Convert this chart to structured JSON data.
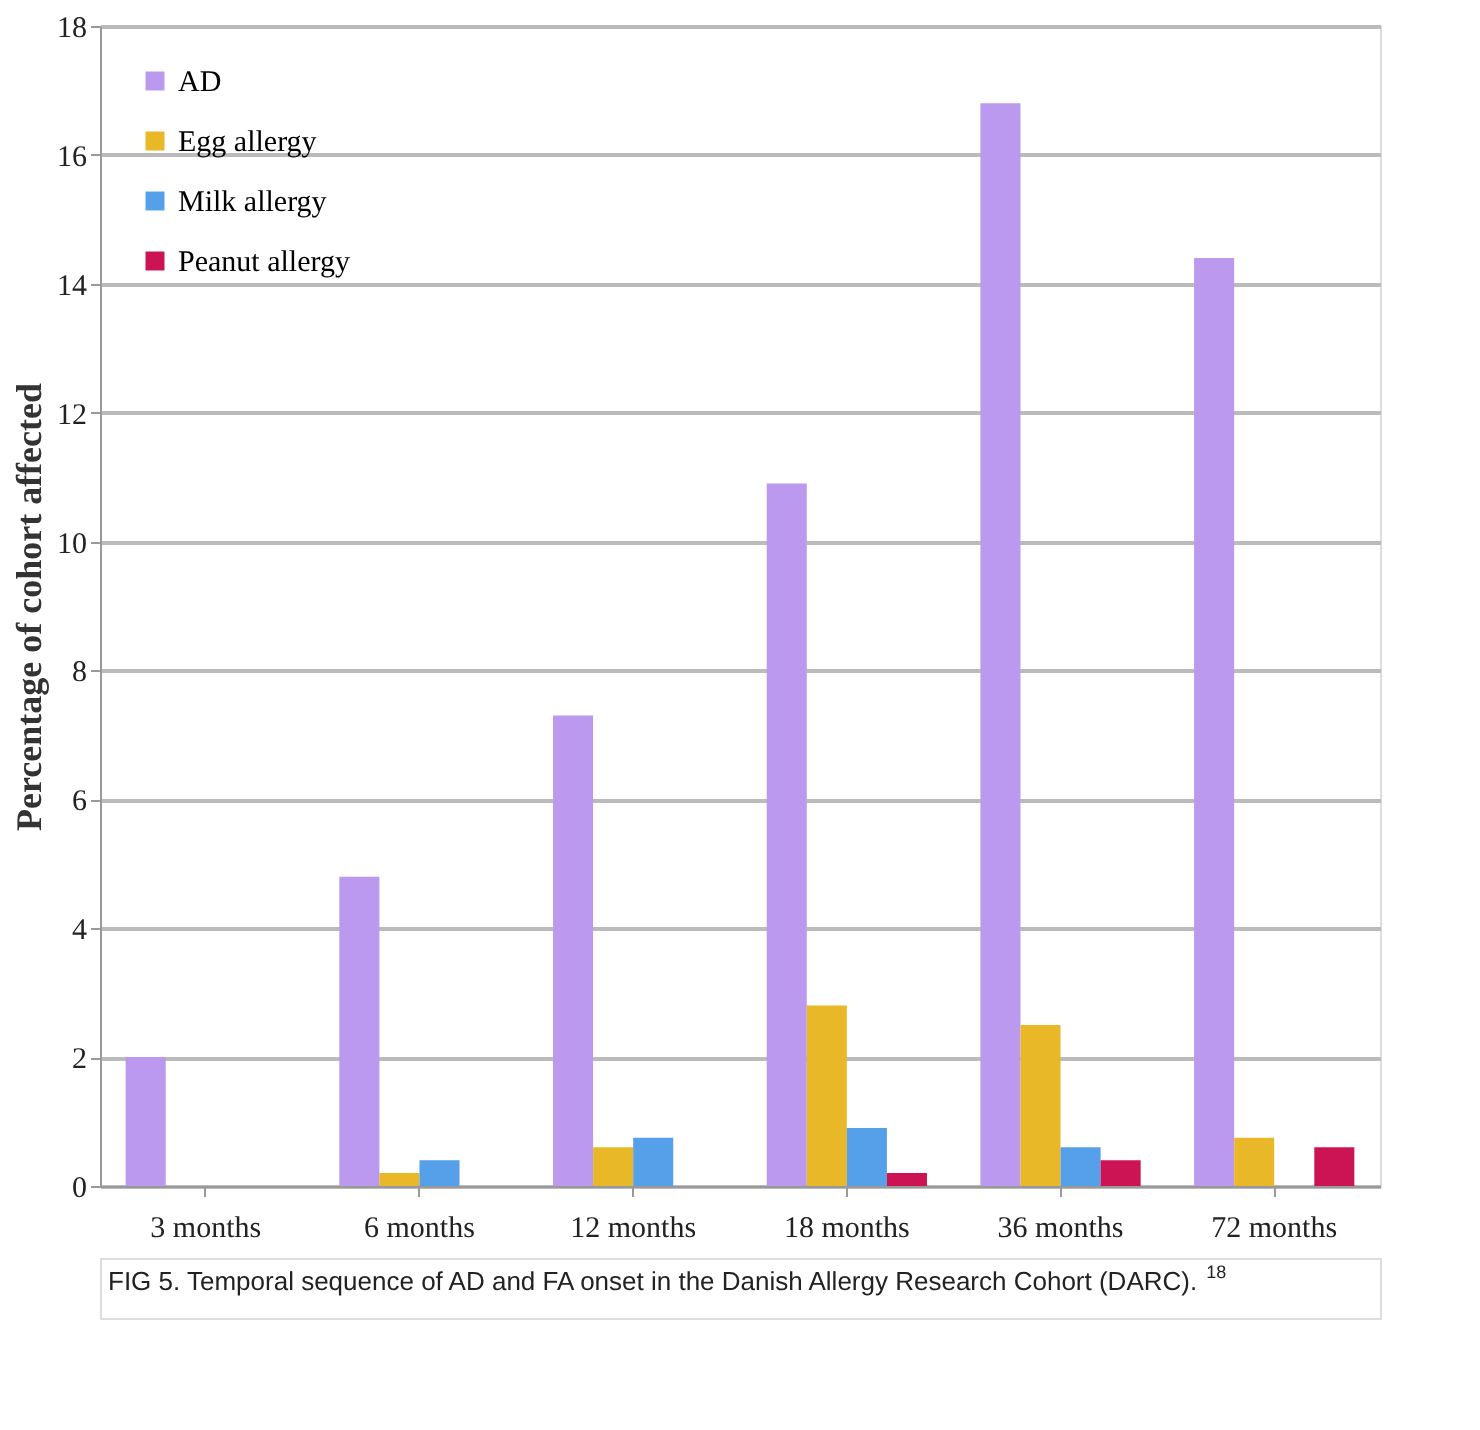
{
  "chart_data": {
    "type": "bar",
    "ylabel": "Percentage of cohort affected",
    "categories": [
      "3 months",
      "6 months",
      "12 months",
      "18 months",
      "36 months",
      "72 months"
    ],
    "series": [
      {
        "name": "AD",
        "color": "#bb99ee",
        "values": [
          2.0,
          4.8,
          7.3,
          10.9,
          16.8,
          14.4
        ]
      },
      {
        "name": "Egg allergy",
        "color": "#e8b828",
        "values": [
          null,
          0.2,
          0.6,
          2.8,
          2.5,
          0.75
        ]
      },
      {
        "name": "Milk allergy",
        "color": "#55a0e8",
        "values": [
          null,
          0.4,
          0.75,
          0.9,
          0.6,
          null
        ]
      },
      {
        "name": "Peanut allergy",
        "color": "#cc1455",
        "values": [
          null,
          null,
          null,
          0.2,
          0.4,
          0.6
        ]
      }
    ],
    "ylim": [
      0,
      18
    ],
    "yticks": [
      0,
      2,
      4,
      6,
      8,
      10,
      12,
      14,
      16,
      18
    ],
    "grid": "y",
    "legend": "top left",
    "annotations": [
      "FIG 5. Temporal sequence of AD and FA onset in the Danish Allergy Research Cohort (DARC).$^{18}$"
    ]
  }
}
